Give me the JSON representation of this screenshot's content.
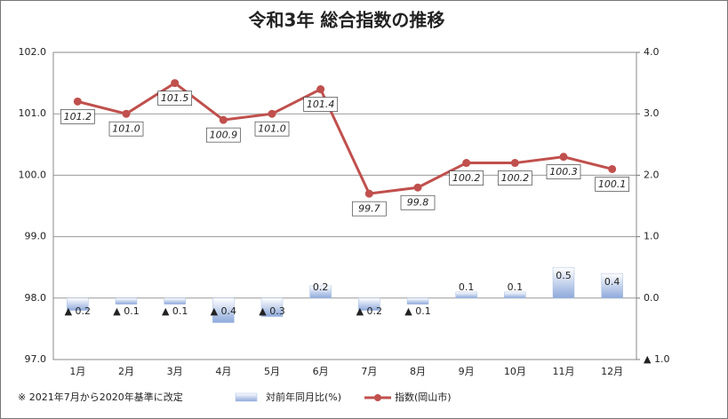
{
  "chart_data": {
    "type": "bar-line",
    "title": "令和3年  総合指数の推移",
    "annotation": "※ 2021年7月から2020年基準に改定",
    "categories": [
      "1月",
      "2月",
      "3月",
      "4月",
      "5月",
      "6月",
      "7月",
      "8月",
      "9月",
      "10月",
      "11月",
      "12月"
    ],
    "series": [
      {
        "name": "対前年同月比(%)",
        "type": "bar",
        "axis": "y2",
        "color": "#a9bfe3",
        "values": [
          -0.2,
          -0.1,
          -0.1,
          -0.4,
          -0.3,
          0.2,
          -0.2,
          -0.1,
          0.1,
          0.1,
          0.5,
          0.4
        ],
        "value_labels": [
          "▲ 0.2",
          "▲ 0.1",
          "▲ 0.1",
          "▲ 0.4",
          "▲ 0.3",
          "0.2",
          "▲ 0.2",
          "▲ 0.1",
          "0.1",
          "0.1",
          "0.5",
          "0.4"
        ]
      },
      {
        "name": "指数(岡山市)",
        "type": "line",
        "color": "#c0504d",
        "values": [
          101.2,
          101.0,
          101.5,
          100.9,
          101.0,
          101.4,
          99.7,
          99.8,
          100.2,
          100.2,
          100.3,
          100.1
        ],
        "value_labels": [
          "101.2",
          "101.0",
          "101.5",
          "100.9",
          "101.0",
          "101.4",
          "99.7",
          "99.8",
          "100.2",
          "100.2",
          "100.3",
          "100.1"
        ]
      }
    ],
    "ylim": [
      97,
      102
    ],
    "yticks": [
      {
        "value": 97,
        "label": "97.0"
      },
      {
        "value": 98,
        "label": "98.0"
      },
      {
        "value": 99,
        "label": "99.0"
      },
      {
        "value": 100,
        "label": "100.0"
      },
      {
        "value": 101,
        "label": "101.0"
      },
      {
        "value": 102,
        "label": "102.0"
      }
    ],
    "y2lim": [
      -1,
      4
    ],
    "y2ticks": [
      {
        "value": -1,
        "label": "▲ 1.0"
      },
      {
        "value": 0,
        "label": "0.0"
      },
      {
        "value": 1,
        "label": "1.0"
      },
      {
        "value": 2,
        "label": "2.0"
      },
      {
        "value": 3,
        "label": "3.0"
      },
      {
        "value": 4,
        "label": "4.0"
      }
    ],
    "grid": true
  }
}
